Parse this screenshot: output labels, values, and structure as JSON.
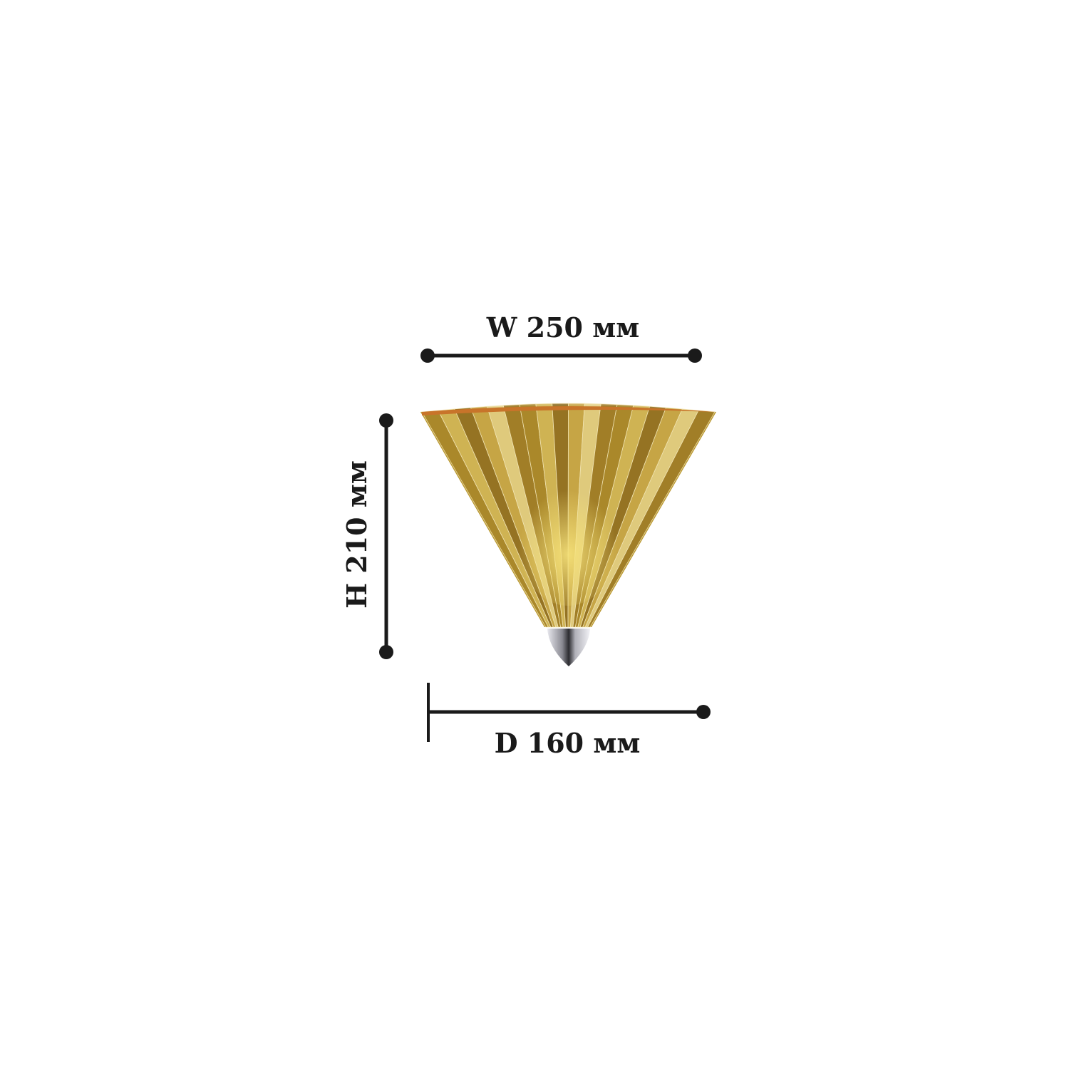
{
  "dimensions": {
    "width_label": "W 250 мм",
    "height_label": "H 210 мм",
    "depth_label": "D 160 мм"
  },
  "product": {
    "type": "wall-sconce",
    "shade_color": "#b8962e",
    "rim_color": "#c8742a",
    "tip_color": "#c0c0c8"
  },
  "colors": {
    "lines": "#1a1a1a"
  }
}
